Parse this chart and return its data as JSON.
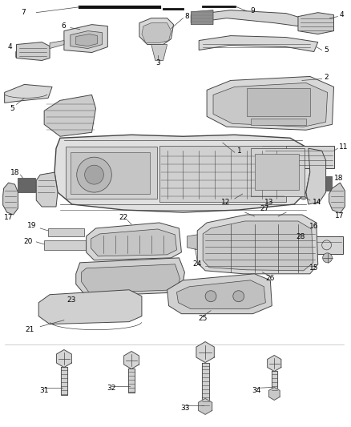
{
  "bg_color": "#ffffff",
  "fig_width": 4.38,
  "fig_height": 5.33,
  "dpi": 100,
  "text_color": "#000000",
  "label_fontsize": 6.5,
  "line_color": "#444444",
  "part_lw": 0.7,
  "part_fc": "#e8e8e8",
  "part_fc2": "#d4d4d4",
  "part_fc3": "#c8c8c8",
  "dark_fc": "#555555"
}
